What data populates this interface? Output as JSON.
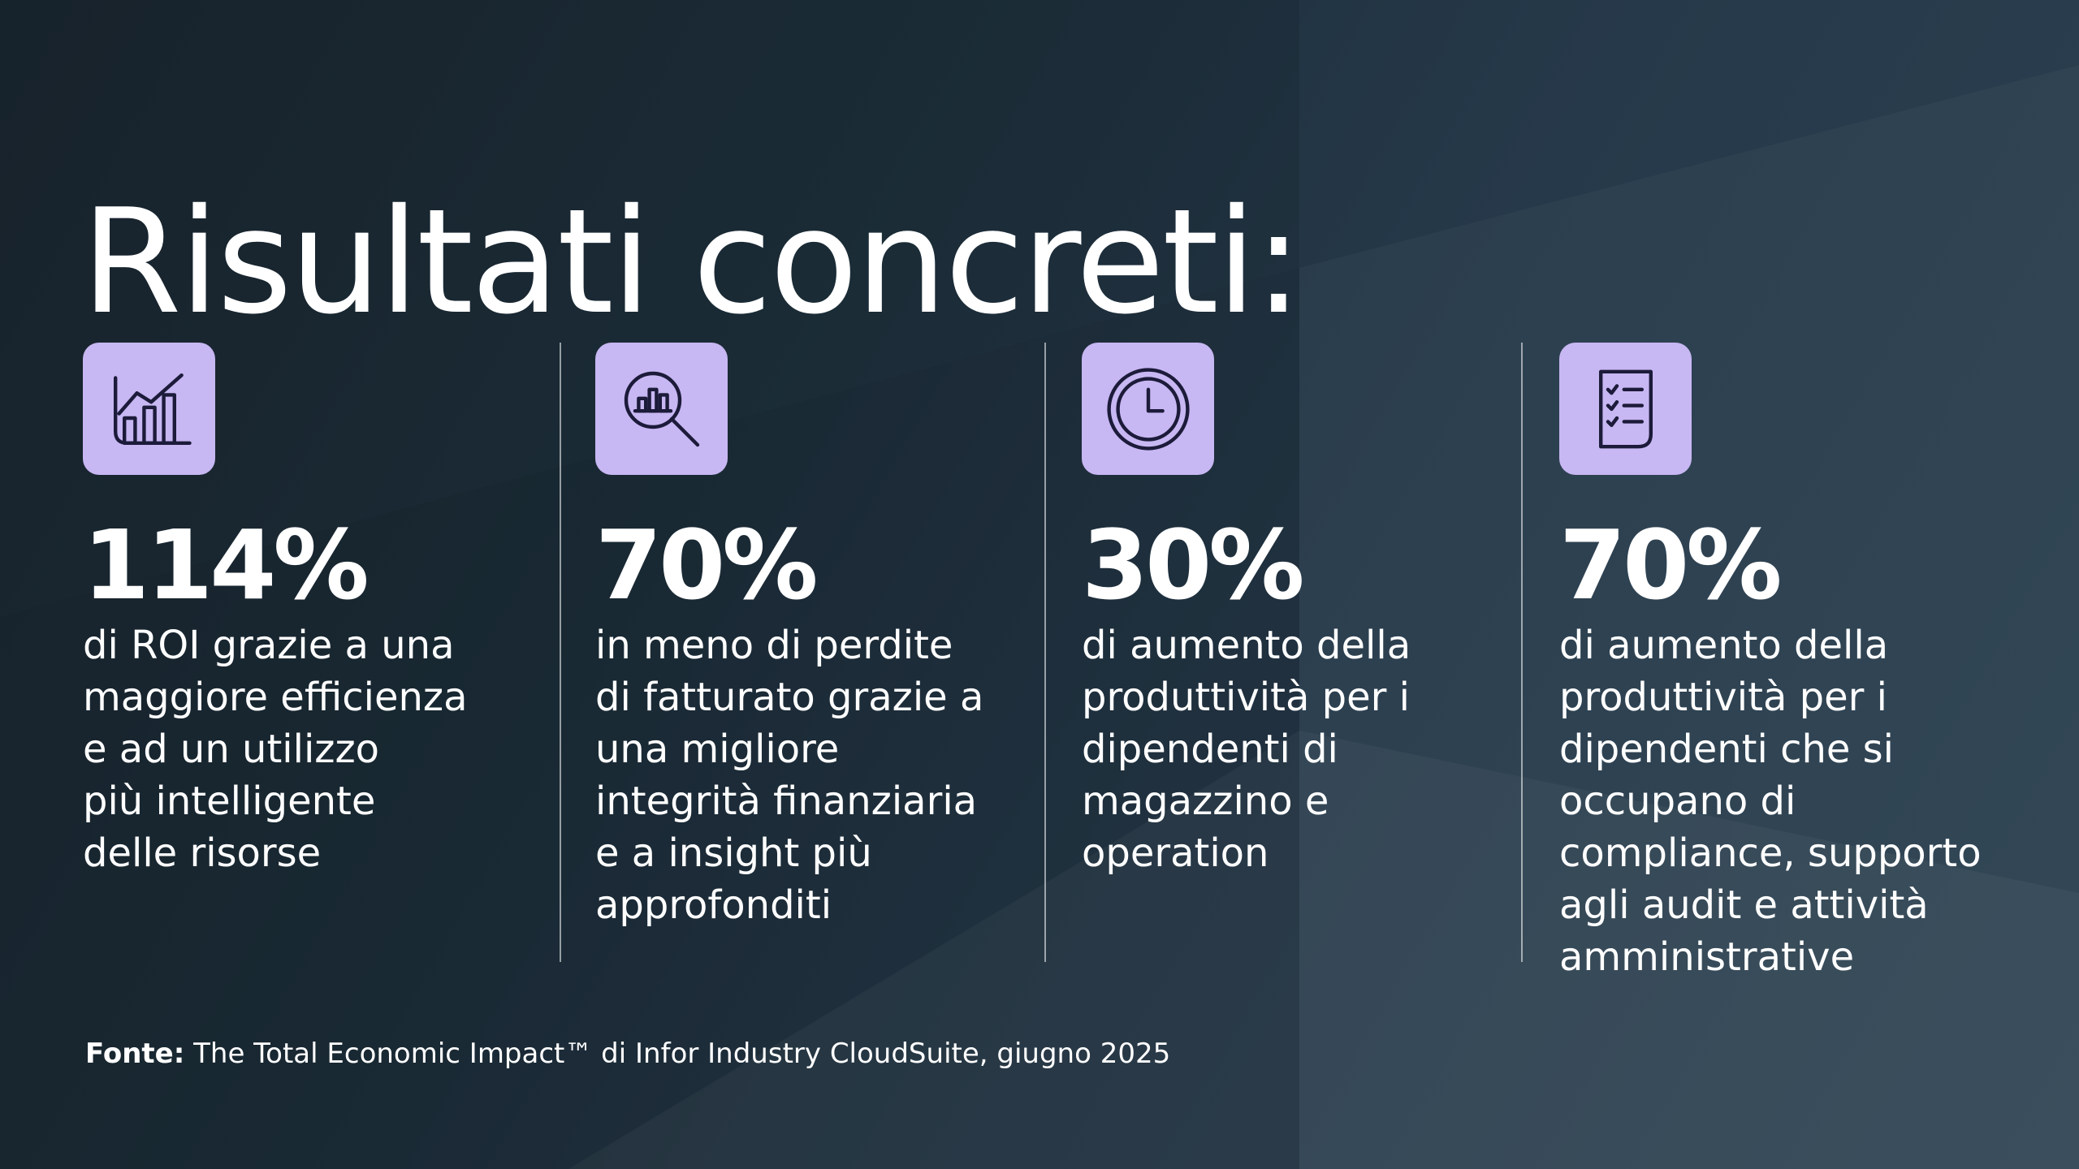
{
  "title": "Risultati concreti:",
  "colors": {
    "icon_background": "#c7b7f2",
    "icon_stroke": "#1c1b3a",
    "text": "#ffffff"
  },
  "stats": [
    {
      "icon": "chart-growth-icon",
      "value": "114%",
      "description": "di ROI grazie a una\nmaggiore efficienza\ne ad un utilizzo\npiù intelligente\ndelle risorse"
    },
    {
      "icon": "magnifier-chart-icon",
      "value": "70%",
      "description": "in meno di perdite\ndi fatturato grazie a\nuna migliore\nintegrità finanziaria\ne a insight più\napprofonditi"
    },
    {
      "icon": "clock-icon",
      "value": "30%",
      "description": "di aumento della\nproduttività per i\ndipendenti di\nmagazzino  e\noperation"
    },
    {
      "icon": "checklist-icon",
      "value": "70%",
      "description": "di aumento della\nproduttività per i\ndipendenti che si\noccupano di\ncompliance, supporto\nagli audit e attività\namministrative"
    }
  ],
  "source": {
    "label": "Fonte:",
    "text": " The Total Economic Impact™ di Infor Industry CloudSuite, giugno 2025"
  }
}
